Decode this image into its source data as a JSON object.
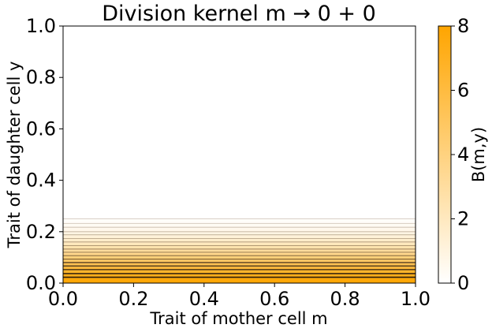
{
  "chart_data": {
    "type": "heatmap",
    "title": "Division kernel m → 0 + 0",
    "xlabel": "Trait of mother cell m",
    "ylabel": "Trait of daughter cell y",
    "xlim": [
      0,
      1
    ],
    "ylim": [
      0,
      1
    ],
    "x_ticks": [
      "0.0",
      "0.2",
      "0.4",
      "0.6",
      "0.8",
      "1.0"
    ],
    "y_ticks": [
      "0.0",
      "0.2",
      "0.4",
      "0.6",
      "0.8",
      "1.0"
    ],
    "colorbar": {
      "label": "B(m,y)",
      "range": [
        0,
        8
      ],
      "ticks": [
        "0",
        "2",
        "4",
        "6",
        "8"
      ],
      "color_low": "#ffffff",
      "color_high": "#ffa500"
    },
    "field": {
      "description_note": "value depends only on y; B(m,y) ≈ 8 at y=0 decaying to ~0 by y≈0.25",
      "y": [
        0.0,
        0.02,
        0.04,
        0.06,
        0.08,
        0.1,
        0.12,
        0.14,
        0.16,
        0.18,
        0.2,
        0.22,
        0.24,
        0.26
      ],
      "value": [
        8.0,
        7.6,
        6.9,
        6.1,
        5.2,
        4.3,
        3.4,
        2.6,
        1.9,
        1.3,
        0.8,
        0.45,
        0.2,
        0.0
      ]
    },
    "contour_levels": [
      0.1,
      0.3,
      0.5,
      0.8,
      1.1,
      1.5,
      1.9,
      2.4,
      2.9,
      3.4,
      4.0,
      4.6,
      5.2,
      5.8,
      6.4,
      7.0,
      7.5
    ],
    "grid": false,
    "legend": "none"
  }
}
